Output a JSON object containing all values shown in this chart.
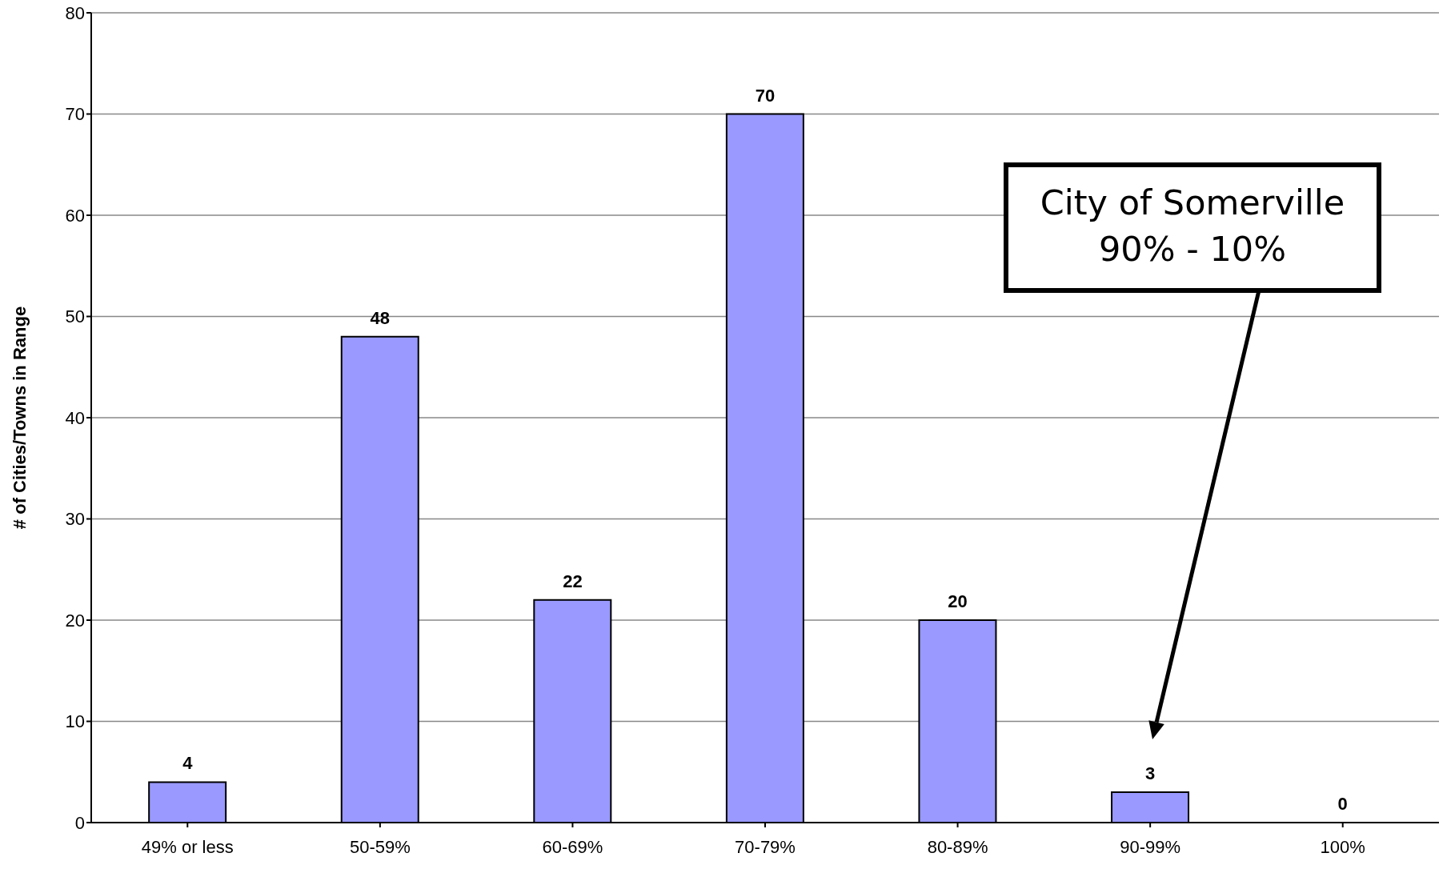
{
  "chart_data": {
    "type": "bar",
    "ylabel": "# of Cities/Towns in Range",
    "categories": [
      "49% or less",
      "50-59%",
      "60-69%",
      "70-79%",
      "80-89%",
      "90-99%",
      "100%"
    ],
    "values": [
      4,
      48,
      22,
      70,
      20,
      3,
      0
    ],
    "color": "#9999ff",
    "ylim": [
      0,
      80
    ],
    "yticks": [
      0,
      10,
      20,
      30,
      40,
      50,
      60,
      70,
      80
    ],
    "grid": "y",
    "data_labels": true,
    "annotations": [
      "City of Somerville\n90% - 10%"
    ]
  }
}
